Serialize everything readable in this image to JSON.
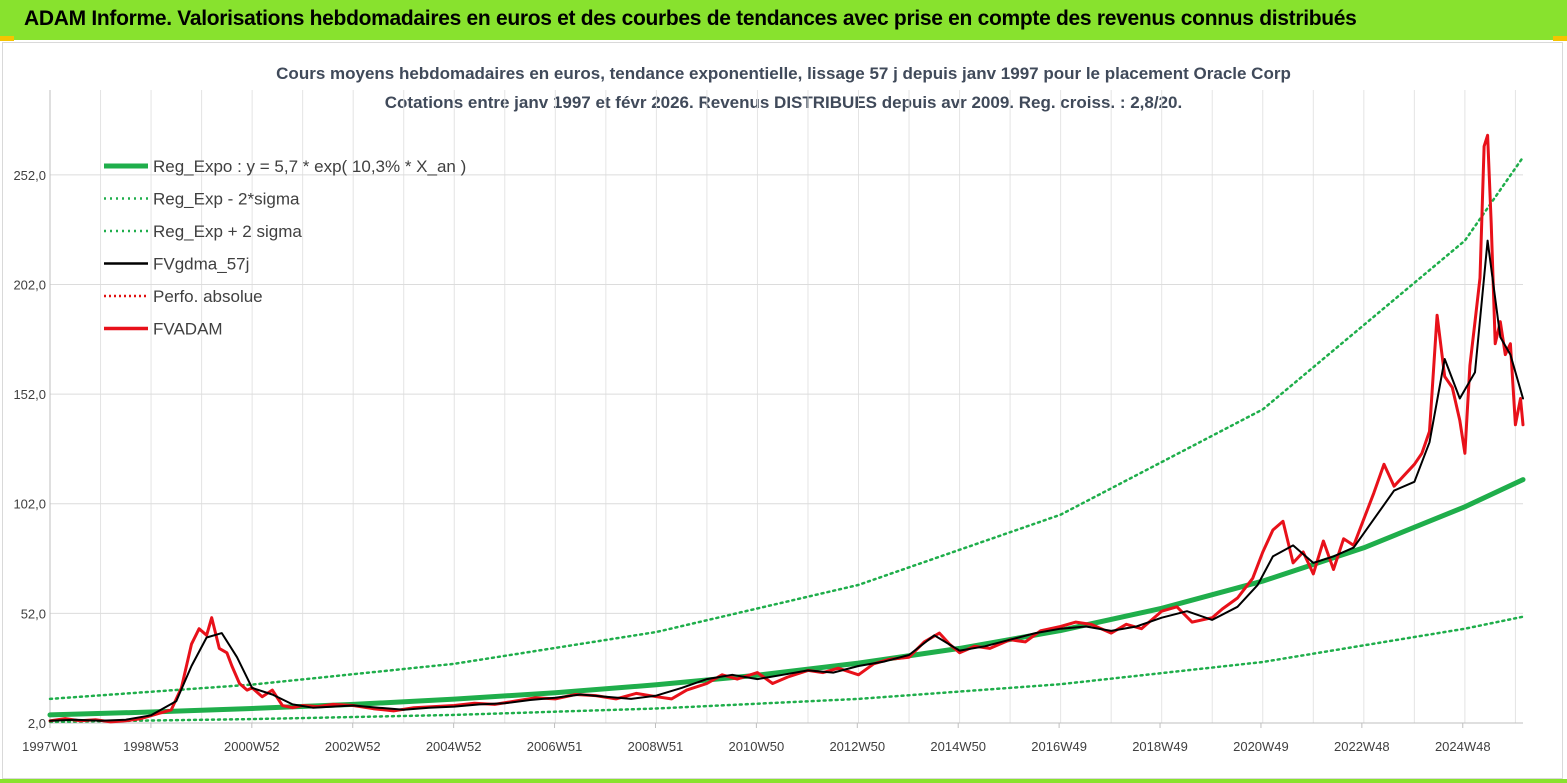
{
  "banner": {
    "title": "ADAM Informe. Valorisations hebdomadaires en euros et des courbes de tendances avec prise en compte des revenus connus distribués"
  },
  "colors": {
    "banner": "#88e22e",
    "trend": "#1fae4b",
    "sigma": "#1fae4b",
    "smooth": "#000000",
    "perf": "#e01010",
    "price": "#e8111a"
  },
  "chart_data": {
    "type": "line",
    "title": "Cours moyens hebdomadaires en euros, tendance exponentielle, lissage 57 j depuis janv 1997 pour le placement Oracle Corp",
    "subtitle": "Cotations entre janv 1997 et févr 2026. Revenus DISTRIBUES depuis avr 2009. Reg. croiss. : 2,8/20.",
    "ylim": [
      2,
      277
    ],
    "xlim": [
      1997.0,
      2026.15
    ],
    "grid": true,
    "legend_position": "top-left",
    "y_ticks": [
      "2,0",
      "52,0",
      "102,0",
      "152,0",
      "202,0",
      "252,0"
    ],
    "x_ticks": [
      "1997W01",
      "1998W53",
      "2000W52",
      "2002W52",
      "2004W52",
      "2006W51",
      "2008W51",
      "2010W50",
      "2012W50",
      "2014W50",
      "2016W49",
      "2018W49",
      "2020W49",
      "2022W48",
      "2024W48"
    ],
    "series": [
      {
        "name": "Reg_Expo : y = 5,7 * exp( 10,3% *  X_an )",
        "style": "thick",
        "x": [
          1997.0,
          1999.0,
          2001.0,
          2003.0,
          2005.0,
          2007.0,
          2009.0,
          2011.0,
          2013.0,
          2015.0,
          2017.0,
          2019.0,
          2021.0,
          2023.0,
          2025.0,
          2026.15
        ],
        "y": [
          5.7,
          7.0,
          8.6,
          10.5,
          12.9,
          15.8,
          19.4,
          23.8,
          29.3,
          36.0,
          44.2,
          54.3,
          66.7,
          81.9,
          100.6,
          113.0
        ]
      },
      {
        "name": "Reg_Exp - 2*sigma",
        "style": "dotted",
        "x": [
          1997.0,
          2001.0,
          2005.0,
          2009.0,
          2013.0,
          2017.0,
          2021.0,
          2025.0,
          2026.15
        ],
        "y": [
          2.5,
          3.8,
          5.7,
          8.6,
          13.0,
          19.7,
          29.8,
          45.0,
          50.5
        ]
      },
      {
        "name": "Reg_Exp + 2 sigma",
        "style": "dotted",
        "x": [
          1997.0,
          2001.0,
          2005.0,
          2009.0,
          2013.0,
          2017.0,
          2021.0,
          2025.0,
          2026.15
        ],
        "y": [
          13.0,
          19.5,
          29.0,
          43.5,
          65.0,
          97.0,
          145.0,
          222.0,
          260.0
        ]
      },
      {
        "name": "FVgdma_57j",
        "style": "thin",
        "x": [
          1997.0,
          1997.5,
          1998.0,
          1998.5,
          1999.0,
          1999.5,
          1999.8,
          2000.1,
          2000.4,
          2000.7,
          2001.0,
          2001.4,
          2001.8,
          2002.2,
          2002.6,
          2003.0,
          2003.5,
          2004.0,
          2004.5,
          2005.0,
          2005.5,
          2006.0,
          2006.5,
          2007.0,
          2007.5,
          2008.0,
          2008.5,
          2009.0,
          2009.5,
          2010.0,
          2010.5,
          2011.0,
          2011.5,
          2012.0,
          2012.5,
          2013.0,
          2013.5,
          2014.0,
          2014.5,
          2015.0,
          2015.5,
          2016.0,
          2016.5,
          2017.0,
          2017.5,
          2018.0,
          2018.5,
          2019.0,
          2019.5,
          2020.0,
          2020.5,
          2020.9,
          2021.2,
          2021.6,
          2022.0,
          2022.4,
          2022.8,
          2023.2,
          2023.6,
          2024.0,
          2024.3,
          2024.6,
          2024.9,
          2025.2,
          2025.45,
          2025.7,
          2025.9,
          2026.15
        ],
        "y": [
          3.0,
          3.5,
          3.0,
          3.5,
          5.5,
          12.0,
          28.0,
          41.0,
          43.0,
          32.0,
          18.0,
          15.0,
          10.5,
          9.0,
          9.5,
          10.0,
          9.0,
          8.0,
          9.0,
          9.5,
          10.5,
          11.0,
          12.5,
          13.5,
          15.0,
          14.0,
          13.0,
          14.5,
          18.0,
          22.0,
          24.0,
          22.0,
          24.0,
          26.0,
          25.0,
          28.0,
          30.0,
          33.0,
          42.0,
          35.0,
          37.0,
          40.0,
          43.0,
          45.0,
          46.0,
          44.0,
          46.0,
          50.0,
          53.0,
          49.0,
          55.0,
          65.0,
          78.0,
          83.0,
          75.0,
          78.0,
          82.0,
          95.0,
          108.0,
          112.0,
          130.0,
          168.0,
          150.0,
          162.0,
          222.0,
          178.0,
          170.0,
          150.0
        ]
      },
      {
        "name": "Perfo. absolue",
        "style": "dotted",
        "x": [],
        "y": []
      },
      {
        "name": "FVADAM",
        "style": "thick",
        "x": [
          1997.0,
          1997.3,
          1997.6,
          1997.9,
          1998.2,
          1998.5,
          1998.8,
          1999.1,
          1999.4,
          1999.6,
          1999.8,
          1999.95,
          2000.1,
          2000.2,
          2000.35,
          2000.5,
          2000.6,
          2000.75,
          2000.9,
          2001.0,
          2001.2,
          2001.4,
          2001.6,
          2001.8,
          2002.0,
          2002.3,
          2002.6,
          2003.0,
          2003.4,
          2003.8,
          2004.2,
          2004.6,
          2005.0,
          2005.4,
          2005.8,
          2006.2,
          2006.6,
          2007.0,
          2007.4,
          2007.8,
          2008.2,
          2008.6,
          2009.0,
          2009.3,
          2009.6,
          2010.0,
          2010.3,
          2010.6,
          2011.0,
          2011.3,
          2011.6,
          2012.0,
          2012.3,
          2012.6,
          2013.0,
          2013.3,
          2013.6,
          2014.0,
          2014.3,
          2014.6,
          2014.8,
          2015.0,
          2015.3,
          2015.6,
          2016.0,
          2016.3,
          2016.6,
          2017.0,
          2017.3,
          2017.6,
          2018.0,
          2018.3,
          2018.6,
          2019.0,
          2019.3,
          2019.6,
          2020.0,
          2020.2,
          2020.5,
          2020.8,
          2021.0,
          2021.2,
          2021.4,
          2021.6,
          2021.8,
          2022.0,
          2022.2,
          2022.4,
          2022.6,
          2022.8,
          2023.0,
          2023.2,
          2023.4,
          2023.6,
          2023.8,
          2024.0,
          2024.15,
          2024.3,
          2024.45,
          2024.6,
          2024.75,
          2024.9,
          2025.0,
          2025.1,
          2025.2,
          2025.3,
          2025.38,
          2025.45,
          2025.52,
          2025.6,
          2025.7,
          2025.8,
          2025.9,
          2026.0,
          2026.1,
          2026.15
        ],
        "y": [
          3.0,
          4.0,
          3.0,
          3.5,
          2.5,
          3.0,
          4.0,
          6.0,
          8.0,
          18.0,
          38.0,
          45.0,
          42.0,
          50.0,
          36.0,
          34.0,
          28.0,
          20.0,
          17.0,
          18.0,
          14.0,
          17.0,
          10.0,
          9.0,
          10.0,
          9.5,
          10.5,
          10.0,
          8.5,
          7.5,
          9.0,
          9.5,
          10.0,
          11.0,
          10.5,
          12.0,
          13.5,
          13.0,
          15.0,
          14.5,
          13.0,
          15.5,
          14.0,
          13.0,
          17.0,
          20.0,
          24.0,
          22.0,
          25.0,
          20.0,
          23.0,
          26.0,
          25.0,
          27.0,
          24.0,
          29.0,
          31.0,
          32.0,
          39.0,
          43.0,
          38.0,
          34.0,
          37.0,
          36.0,
          40.0,
          39.0,
          44.0,
          46.0,
          48.0,
          47.0,
          43.0,
          47.0,
          45.0,
          53.0,
          55.0,
          48.0,
          50.0,
          54.0,
          59.0,
          68.0,
          80.0,
          90.0,
          94.0,
          75.0,
          80.0,
          70.0,
          85.0,
          72.0,
          86.0,
          83.0,
          95.0,
          107.0,
          120.0,
          110.0,
          115.0,
          120.0,
          125.0,
          135.0,
          188.0,
          160.0,
          155.0,
          140.0,
          125.0,
          165.0,
          185.0,
          205.0,
          265.0,
          270.0,
          230.0,
          175.0,
          185.0,
          170.0,
          175.0,
          138.0,
          150.0,
          138.0
        ]
      }
    ]
  }
}
